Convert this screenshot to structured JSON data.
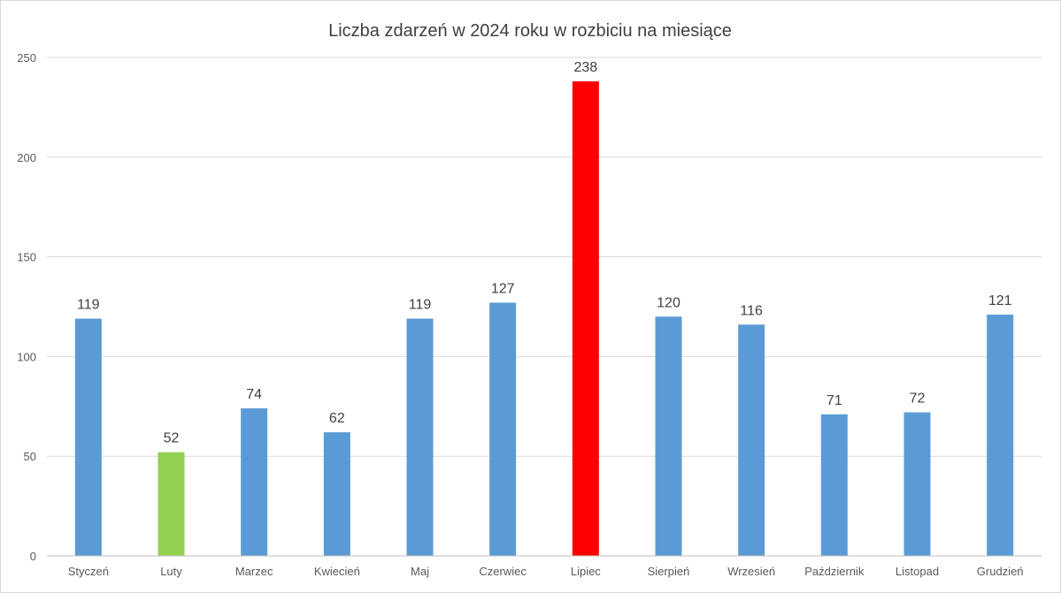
{
  "chart_data": {
    "type": "bar",
    "title": "Liczba zdarzeń w 2024 roku w rozbiciu na miesiące",
    "xlabel": "",
    "ylabel": "",
    "ylim": [
      0,
      250
    ],
    "yticks": [
      0,
      50,
      100,
      150,
      200,
      250
    ],
    "grid": true,
    "legend": "none",
    "categories": [
      "Styczeń",
      "Luty",
      "Marzec",
      "Kwiecień",
      "Maj",
      "Czerwiec",
      "Lipiec",
      "Sierpień",
      "Wrzesień",
      "Październik",
      "Listopad",
      "Grudzień"
    ],
    "values": [
      119,
      52,
      74,
      62,
      119,
      127,
      238,
      120,
      116,
      71,
      72,
      121
    ],
    "colors": [
      "#5b9bd5",
      "#92d050",
      "#5b9bd5",
      "#5b9bd5",
      "#5b9bd5",
      "#5b9bd5",
      "#ff0000",
      "#5b9bd5",
      "#5b9bd5",
      "#5b9bd5",
      "#5b9bd5",
      "#5b9bd5"
    ],
    "data_labels": true
  }
}
